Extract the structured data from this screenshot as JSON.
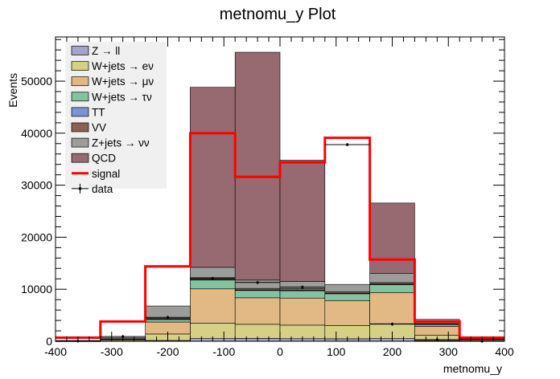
{
  "chart_data": {
    "type": "bar",
    "title": "metnomu_y Plot",
    "xlabel": "metnomu_y",
    "ylabel": "Events",
    "xlim": [
      -400,
      400
    ],
    "ylim": [
      0,
      58500
    ],
    "x_tick_labels": [
      "-400",
      "-300",
      "-200",
      "-100",
      "0",
      "100",
      "200",
      "300",
      "400"
    ],
    "y_tick_labels": [
      "0",
      "10000",
      "20000",
      "30000",
      "40000",
      "50000"
    ],
    "bin_edges": [
      -400,
      -320,
      -240,
      -160,
      -80,
      0,
      80,
      160,
      240,
      320,
      400
    ],
    "legend_position": "top-left",
    "stack_series": [
      {
        "name": "Z → ll",
        "color": "#a6a2c8",
        "values": [
          10,
          40,
          150,
          520,
          560,
          500,
          480,
          520,
          130,
          40
        ]
      },
      {
        "name": "W+jets → eν",
        "color": "#d6cf86",
        "values": [
          30,
          150,
          1250,
          2950,
          2700,
          2600,
          2550,
          2850,
          1050,
          130
        ]
      },
      {
        "name": "W+jets → μν",
        "color": "#e2b984",
        "values": [
          50,
          200,
          2300,
          6600,
          5100,
          5200,
          4800,
          6000,
          1700,
          200
        ]
      },
      {
        "name": "W+jets → τν",
        "color": "#84c2a0",
        "values": [
          10,
          60,
          500,
          1700,
          1400,
          1400,
          1300,
          1500,
          350,
          60
        ]
      },
      {
        "name": "TT",
        "color": "#7c94d2",
        "values": [
          2,
          10,
          50,
          100,
          100,
          100,
          100,
          100,
          50,
          10
        ]
      },
      {
        "name": "VV",
        "color": "#8a6254",
        "values": [
          5,
          20,
          130,
          350,
          300,
          300,
          300,
          300,
          130,
          20
        ]
      },
      {
        "name": "Z+jets → νν",
        "color": "#9c9c9a",
        "values": [
          40,
          200,
          2400,
          2000,
          1600,
          1400,
          1400,
          1800,
          800,
          200
        ]
      },
      {
        "name": "QCD",
        "color": "#976970",
        "values": [
          0,
          0,
          0,
          34600,
          43800,
          23300,
          0,
          13500,
          0,
          0
        ]
      }
    ],
    "signal": {
      "name": "signal",
      "color": "#ff0000",
      "values": [
        700,
        3800,
        14400,
        40000,
        31600,
        34400,
        39100,
        15700,
        3800,
        700
      ]
    },
    "data": {
      "name": "data",
      "bin_centers": [
        -360,
        -280,
        -200,
        -120,
        -40,
        40,
        120,
        200,
        280,
        360
      ],
      "values": [
        50,
        900,
        4600,
        12100,
        11300,
        10400,
        37800,
        3300,
        300,
        20
      ]
    }
  }
}
